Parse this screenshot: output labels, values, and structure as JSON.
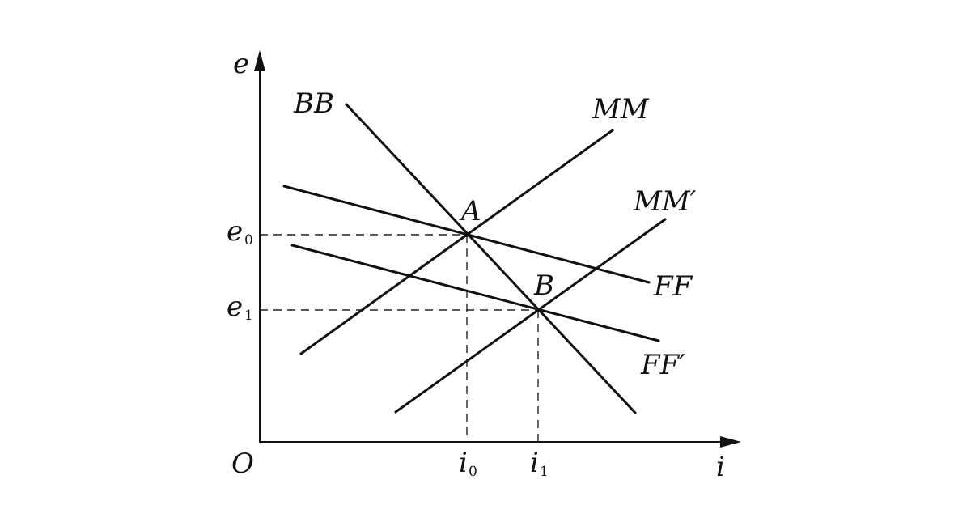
{
  "axes": {
    "y_label": "e",
    "x_label": "i",
    "origin_label": "O"
  },
  "points": {
    "A": "A",
    "B": "B"
  },
  "ticks": {
    "e0": {
      "base": "e",
      "sub": "0"
    },
    "e1": {
      "base": "e",
      "sub": "1"
    },
    "i0": {
      "base": "i",
      "sub": "0"
    },
    "i1": {
      "base": "i",
      "sub": "1"
    }
  },
  "curves": {
    "BB": "BB",
    "MM": "MM",
    "MM_prime": "MM′",
    "FF": "FF",
    "FF_prime": "FF′"
  },
  "colors": {
    "ink": "#111111",
    "background": "#ffffff"
  }
}
